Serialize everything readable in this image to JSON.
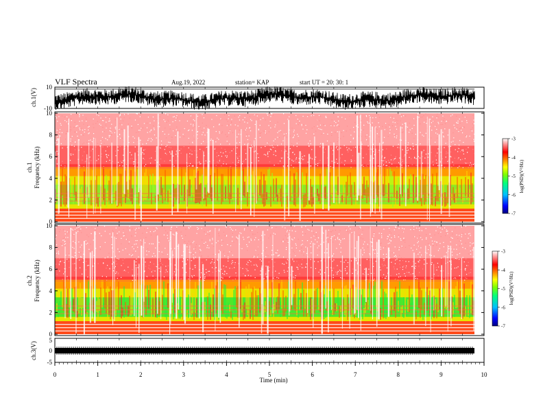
{
  "header": {
    "title": "VLF Spectra",
    "date": "Aug.19, 2022",
    "station": "station= KAP",
    "start_ut": "start  UT  =   20: 30: 1"
  },
  "chart_data": [
    {
      "type": "line",
      "panel": "ch1-waveform",
      "ylabel": "ch.1(V)",
      "yticks": [
        "10",
        "-10"
      ],
      "ylim": [
        -10,
        10
      ],
      "xlim": [
        0,
        10
      ]
    },
    {
      "type": "heatmap",
      "panel": "ch1-spectrogram",
      "ylabel_line1": "ch.1",
      "ylabel_line2": "Frequency  (kHz)",
      "yticks": [
        "0",
        "2",
        "4",
        "6",
        "8",
        "10"
      ],
      "ylim": [
        0,
        10
      ],
      "xlim": [
        0,
        9.8
      ],
      "colorbar": {
        "label": "log(PSD)(V²/Hz)",
        "ticks": [
          "-3",
          "-4",
          "-5",
          "-6",
          "-7"
        ],
        "range": [
          -7,
          -3
        ],
        "colors": [
          "#000080",
          "#0000ff",
          "#00c0ff",
          "#00ff80",
          "#80ff00",
          "#ffff00",
          "#ff8000",
          "#ff0000",
          "#ffffff"
        ]
      }
    },
    {
      "type": "heatmap",
      "panel": "ch2-spectrogram",
      "ylabel_line1": "ch.2",
      "ylabel_line2": "Frequency  (kHz)",
      "yticks": [
        "0",
        "2",
        "4",
        "6",
        "8",
        "10"
      ],
      "ylim": [
        0,
        10
      ],
      "xlim": [
        0,
        9.8
      ],
      "colorbar": {
        "label": "log(PSD)(V²/Hz)",
        "ticks": [
          "-3",
          "-4",
          "-5",
          "-6",
          "-7"
        ],
        "range": [
          -7,
          -3
        ],
        "colors": [
          "#000080",
          "#0000ff",
          "#00c0ff",
          "#00ff80",
          "#80ff00",
          "#ffff00",
          "#ff8000",
          "#ff0000",
          "#ffffff"
        ]
      }
    },
    {
      "type": "line",
      "panel": "ch3-waveform",
      "ylabel": "ch.3(V)",
      "yticks": [
        "5",
        "0",
        "-5"
      ],
      "ylim": [
        -5,
        5
      ],
      "xlim": [
        0,
        10
      ]
    }
  ],
  "xaxis": {
    "label": "Time  (min)",
    "ticks": [
      "0",
      "1",
      "2",
      "3",
      "4",
      "5",
      "6",
      "7",
      "8",
      "9",
      "10"
    ],
    "range": [
      0,
      10
    ]
  }
}
